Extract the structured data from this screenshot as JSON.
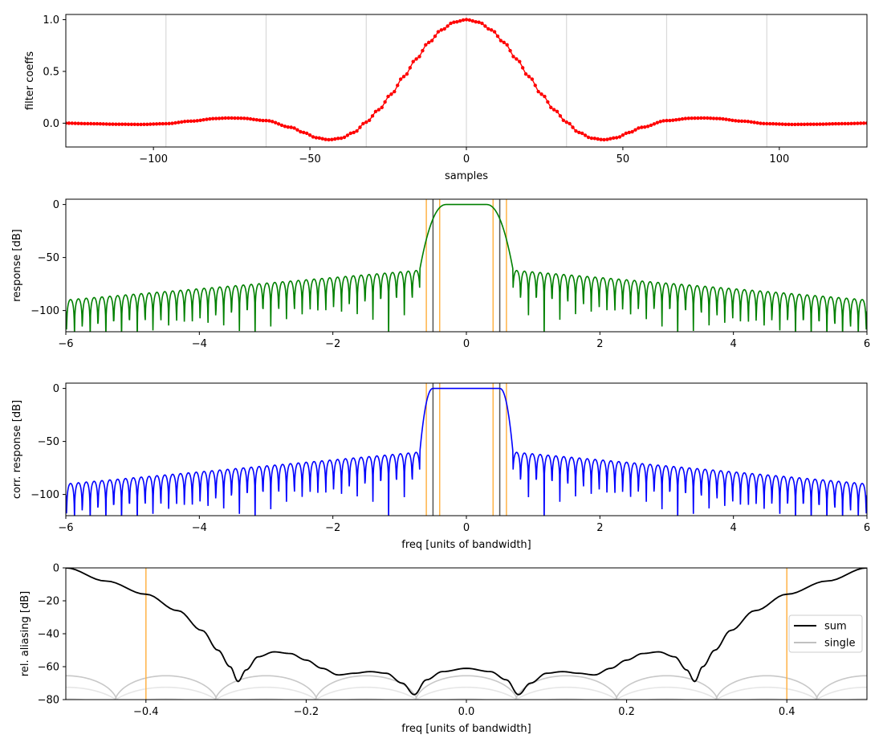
{
  "chart_data": [
    {
      "type": "scatter",
      "xlabel": "samples",
      "ylabel": "filter coeffs",
      "xlim": [
        -128,
        128
      ],
      "ylim": [
        -0.23,
        1.05
      ],
      "xticks": [
        -100,
        -50,
        0,
        50,
        100
      ],
      "xtick_labels": [
        "−100",
        "−50",
        "0",
        "50",
        "100"
      ],
      "yticks": [
        0.0,
        0.5,
        1.0
      ],
      "ytick_labels": [
        "0.0",
        "0.5",
        "1.0"
      ],
      "vlines": [
        -96,
        -64,
        -32,
        32,
        64,
        96
      ],
      "vline_color": "#d9d9d9",
      "series": [
        {
          "color": "#ff0000",
          "marker": "dot",
          "x_start": -128,
          "x_end": 128,
          "points": [
            [
              -128,
              0.0
            ],
            [
              -120,
              -0.005
            ],
            [
              -112,
              -0.01
            ],
            [
              -104,
              -0.012
            ],
            [
              -96,
              -0.005
            ],
            [
              -88,
              0.02
            ],
            [
              -80,
              0.045
            ],
            [
              -76,
              0.05
            ],
            [
              -72,
              0.048
            ],
            [
              -64,
              0.025
            ],
            [
              -56,
              -0.04
            ],
            [
              -52,
              -0.09
            ],
            [
              -48,
              -0.14
            ],
            [
              -44,
              -0.16
            ],
            [
              -40,
              -0.145
            ],
            [
              -36,
              -0.09
            ],
            [
              -32,
              0.01
            ],
            [
              -28,
              0.13
            ],
            [
              -24,
              0.28
            ],
            [
              -20,
              0.45
            ],
            [
              -16,
              0.62
            ],
            [
              -12,
              0.78
            ],
            [
              -8,
              0.9
            ],
            [
              -4,
              0.975
            ],
            [
              0,
              1.0
            ],
            [
              4,
              0.975
            ],
            [
              8,
              0.9
            ],
            [
              12,
              0.78
            ],
            [
              16,
              0.62
            ],
            [
              20,
              0.45
            ],
            [
              24,
              0.28
            ],
            [
              28,
              0.13
            ],
            [
              32,
              0.01
            ],
            [
              36,
              -0.09
            ],
            [
              40,
              -0.145
            ],
            [
              44,
              -0.16
            ],
            [
              48,
              -0.14
            ],
            [
              52,
              -0.09
            ],
            [
              56,
              -0.04
            ],
            [
              64,
              0.025
            ],
            [
              72,
              0.048
            ],
            [
              76,
              0.05
            ],
            [
              80,
              0.045
            ],
            [
              88,
              0.02
            ],
            [
              96,
              -0.005
            ],
            [
              104,
              -0.012
            ],
            [
              112,
              -0.01
            ],
            [
              120,
              -0.005
            ],
            [
              128,
              0.0
            ]
          ]
        }
      ]
    },
    {
      "type": "line",
      "xlabel": "",
      "ylabel": "response [dB]",
      "xlim": [
        -6,
        6
      ],
      "ylim": [
        -120,
        5
      ],
      "xticks": [
        -6,
        -4,
        -2,
        0,
        2,
        4,
        6
      ],
      "xtick_labels": [
        "−6",
        "−4",
        "−2",
        "0",
        "2",
        "4",
        "6"
      ],
      "yticks": [
        0,
        -50,
        -100
      ],
      "ytick_labels": [
        "0",
        "−50",
        "−100"
      ],
      "vlines": [
        {
          "x": -0.6,
          "color": "#ffb347"
        },
        {
          "x": -0.4,
          "color": "#ffb347"
        },
        {
          "x": 0.4,
          "color": "#ffb347"
        },
        {
          "x": 0.6,
          "color": "#ffb347"
        },
        {
          "x": -0.5,
          "color": "#555555"
        },
        {
          "x": 0.5,
          "color": "#555555"
        }
      ],
      "series": [
        {
          "color": "#008000",
          "passband_edge": 0.3,
          "transition_edge": 0.7,
          "sidelobe_peak_near": -62,
          "sidelobe_peak_far": -90,
          "lobes_per_unit": 8.5
        }
      ]
    },
    {
      "type": "line",
      "xlabel": "freq [units of bandwidth]",
      "ylabel": "corr. response [dB]",
      "xlim": [
        -6,
        6
      ],
      "ylim": [
        -120,
        5
      ],
      "xticks": [
        -6,
        -4,
        -2,
        0,
        2,
        4,
        6
      ],
      "xtick_labels": [
        "−6",
        "−4",
        "−2",
        "0",
        "2",
        "4",
        "6"
      ],
      "yticks": [
        0,
        -50,
        -100
      ],
      "ytick_labels": [
        "0",
        "−50",
        "−100"
      ],
      "vlines": [
        {
          "x": -0.6,
          "color": "#ffb347"
        },
        {
          "x": -0.4,
          "color": "#ffb347"
        },
        {
          "x": 0.4,
          "color": "#ffb347"
        },
        {
          "x": 0.6,
          "color": "#ffb347"
        },
        {
          "x": -0.5,
          "color": "#555555"
        },
        {
          "x": 0.5,
          "color": "#555555"
        }
      ],
      "series": [
        {
          "color": "#0000ff",
          "passband_edge": 0.5,
          "transition_edge": 0.7,
          "sidelobe_peak_near": -60,
          "sidelobe_peak_far": -90,
          "lobes_per_unit": 8.5
        }
      ]
    },
    {
      "type": "line",
      "xlabel": "freq [units of bandwidth]",
      "ylabel": "rel. aliasing [dB]",
      "xlim": [
        -0.5,
        0.5
      ],
      "ylim": [
        -80,
        0
      ],
      "xticks": [
        -0.4,
        -0.2,
        0.0,
        0.2,
        0.4
      ],
      "xtick_labels": [
        "−0.4",
        "−0.2",
        "0.0",
        "0.2",
        "0.4"
      ],
      "yticks": [
        0,
        -20,
        -40,
        -60,
        -80
      ],
      "ytick_labels": [
        "0",
        "−20",
        "−40",
        "−60",
        "−80"
      ],
      "vlines": [
        {
          "x": -0.4,
          "color": "#ffb347"
        },
        {
          "x": 0.4,
          "color": "#ffb347"
        }
      ],
      "legend": {
        "placement": "right",
        "entries": [
          {
            "label": "sum",
            "color": "#000000"
          },
          {
            "label": "single",
            "color": "#c0c0c0"
          }
        ]
      },
      "series": [
        {
          "name": "sum",
          "color": "#000000",
          "points": [
            [
              -0.5,
              0
            ],
            [
              -0.45,
              -8
            ],
            [
              -0.4,
              -16
            ],
            [
              -0.36,
              -26
            ],
            [
              -0.33,
              -38
            ],
            [
              -0.31,
              -50
            ],
            [
              -0.295,
              -60
            ],
            [
              -0.285,
              -69
            ],
            [
              -0.275,
              -62
            ],
            [
              -0.26,
              -54
            ],
            [
              -0.24,
              -51
            ],
            [
              -0.22,
              -52
            ],
            [
              -0.2,
              -56
            ],
            [
              -0.18,
              -61
            ],
            [
              -0.16,
              -65
            ],
            [
              -0.14,
              -64
            ],
            [
              -0.12,
              -63
            ],
            [
              -0.1,
              -64
            ],
            [
              -0.08,
              -70
            ],
            [
              -0.065,
              -77
            ],
            [
              -0.05,
              -68
            ],
            [
              -0.03,
              -63
            ],
            [
              0.0,
              -61
            ],
            [
              0.03,
              -63
            ],
            [
              0.05,
              -68
            ],
            [
              0.065,
              -77
            ],
            [
              0.08,
              -70
            ],
            [
              0.1,
              -64
            ],
            [
              0.12,
              -63
            ],
            [
              0.14,
              -64
            ],
            [
              0.16,
              -65
            ],
            [
              0.18,
              -61
            ],
            [
              0.2,
              -56
            ],
            [
              0.22,
              -52
            ],
            [
              0.24,
              -51
            ],
            [
              0.26,
              -54
            ],
            [
              0.275,
              -62
            ],
            [
              0.285,
              -69
            ],
            [
              0.295,
              -60
            ],
            [
              0.31,
              -50
            ],
            [
              0.33,
              -38
            ],
            [
              0.36,
              -26
            ],
            [
              0.4,
              -16
            ],
            [
              0.45,
              -8
            ],
            [
              0.5,
              0
            ]
          ]
        },
        {
          "name": "single",
          "color": "#c0c0c0",
          "arcs_center": [
            -0.5,
            -0.375,
            -0.25,
            -0.125,
            0.0,
            0.125,
            0.25,
            0.375,
            0.5
          ],
          "arc_peak": -65,
          "arc_halfwidth": 0.065
        }
      ]
    }
  ]
}
